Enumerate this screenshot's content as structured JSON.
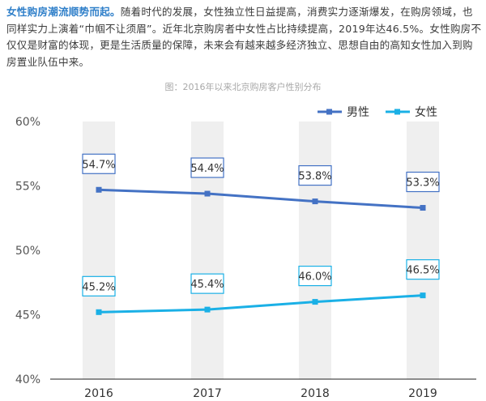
{
  "intro": {
    "lead": "女性购房潮流顺势而起。",
    "body": "随着时代的发展，女性独立性日益提高，消费实力逐渐爆发，在购房领域，也同样实力上演着“巾帼不让须眉”。近年北京购房者中女性占比持续提高，2019年达46.5%。女性购房不仅仅是财富的体现，更是生活质量的保障，未来会有越来越多经济独立、思想自由的高知女性加入到购房置业队伍中来。"
  },
  "caption": "图：2016年以来北京购房客户性别分布",
  "chart_data": {
    "type": "line",
    "title": "图：2016年以来北京购房客户性别分布",
    "categories": [
      "2016",
      "2017",
      "2018",
      "2019"
    ],
    "series": [
      {
        "name": "男性",
        "values": [
          54.7,
          54.4,
          53.8,
          53.3
        ],
        "labels": [
          "54.7%",
          "54.4%",
          "53.8%",
          "53.3%"
        ],
        "color": "#4472c4"
      },
      {
        "name": "女性",
        "values": [
          45.2,
          45.4,
          46.0,
          46.5
        ],
        "labels": [
          "45.2%",
          "45.4%",
          "46.0%",
          "46.5%"
        ],
        "color": "#1ab0e6"
      }
    ],
    "yticks": [
      "40%",
      "45%",
      "50%",
      "55%",
      "60%"
    ],
    "ylim": [
      40,
      60
    ],
    "legend": "top-right",
    "grid": false,
    "category_bands": true
  }
}
